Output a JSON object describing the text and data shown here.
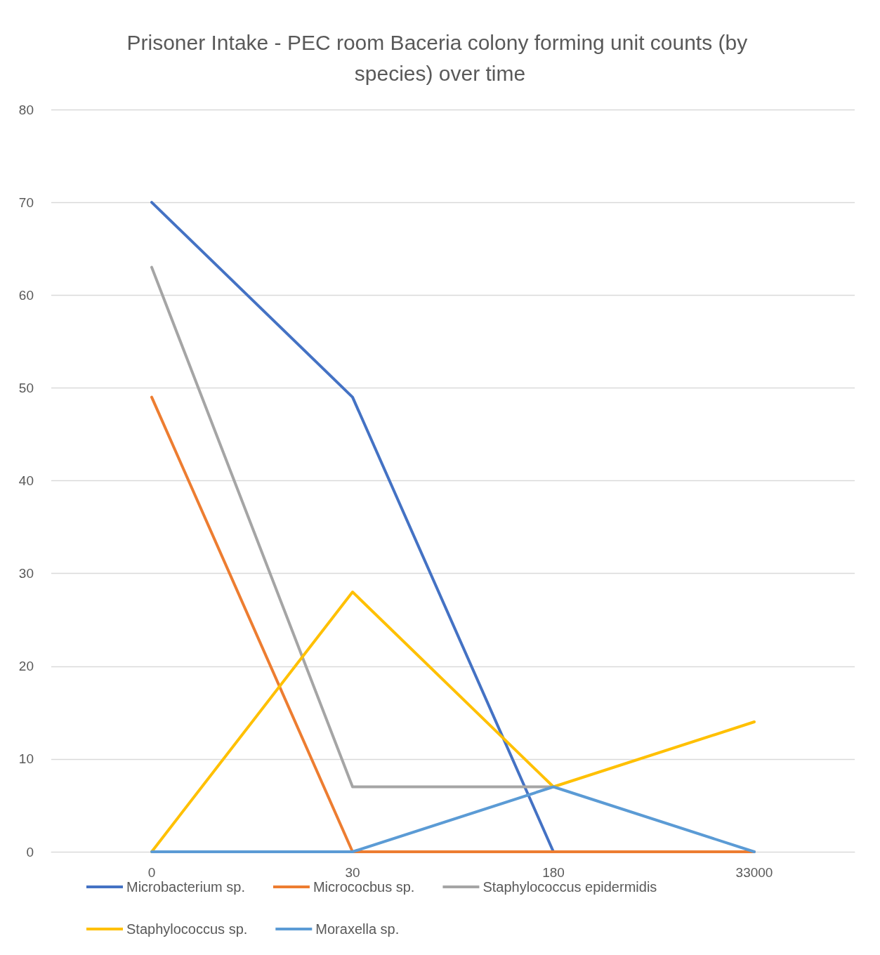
{
  "chart_data": {
    "type": "line",
    "title": "Prisoner Intake - PEC room Baceria colony forming unit counts (by species) over time",
    "categories": [
      "0",
      "30",
      "180",
      "33000"
    ],
    "ylim": [
      0,
      80
    ],
    "yticks": [
      0,
      10,
      20,
      30,
      40,
      50,
      60,
      70,
      80
    ],
    "grid": "y",
    "legend": "bottom",
    "marker": "none",
    "line_style": "solid",
    "series": [
      {
        "name": "Microbacterium sp.",
        "color": "#4472c4",
        "values": [
          70,
          49,
          0,
          null
        ]
      },
      {
        "name": "Micrococbus sp.",
        "color": "#ed7d31",
        "values": [
          49,
          0,
          0,
          0
        ]
      },
      {
        "name": "Staphylococcus epidermidis",
        "color": "#a5a5a5",
        "values": [
          63,
          7,
          7,
          null
        ]
      },
      {
        "name": "Staphylococcus sp.",
        "color": "#ffc000",
        "values": [
          0,
          28,
          7,
          14
        ]
      },
      {
        "name": "Moraxella sp.",
        "color": "#5b9bd5",
        "values": [
          0,
          0,
          7,
          0
        ]
      }
    ]
  }
}
